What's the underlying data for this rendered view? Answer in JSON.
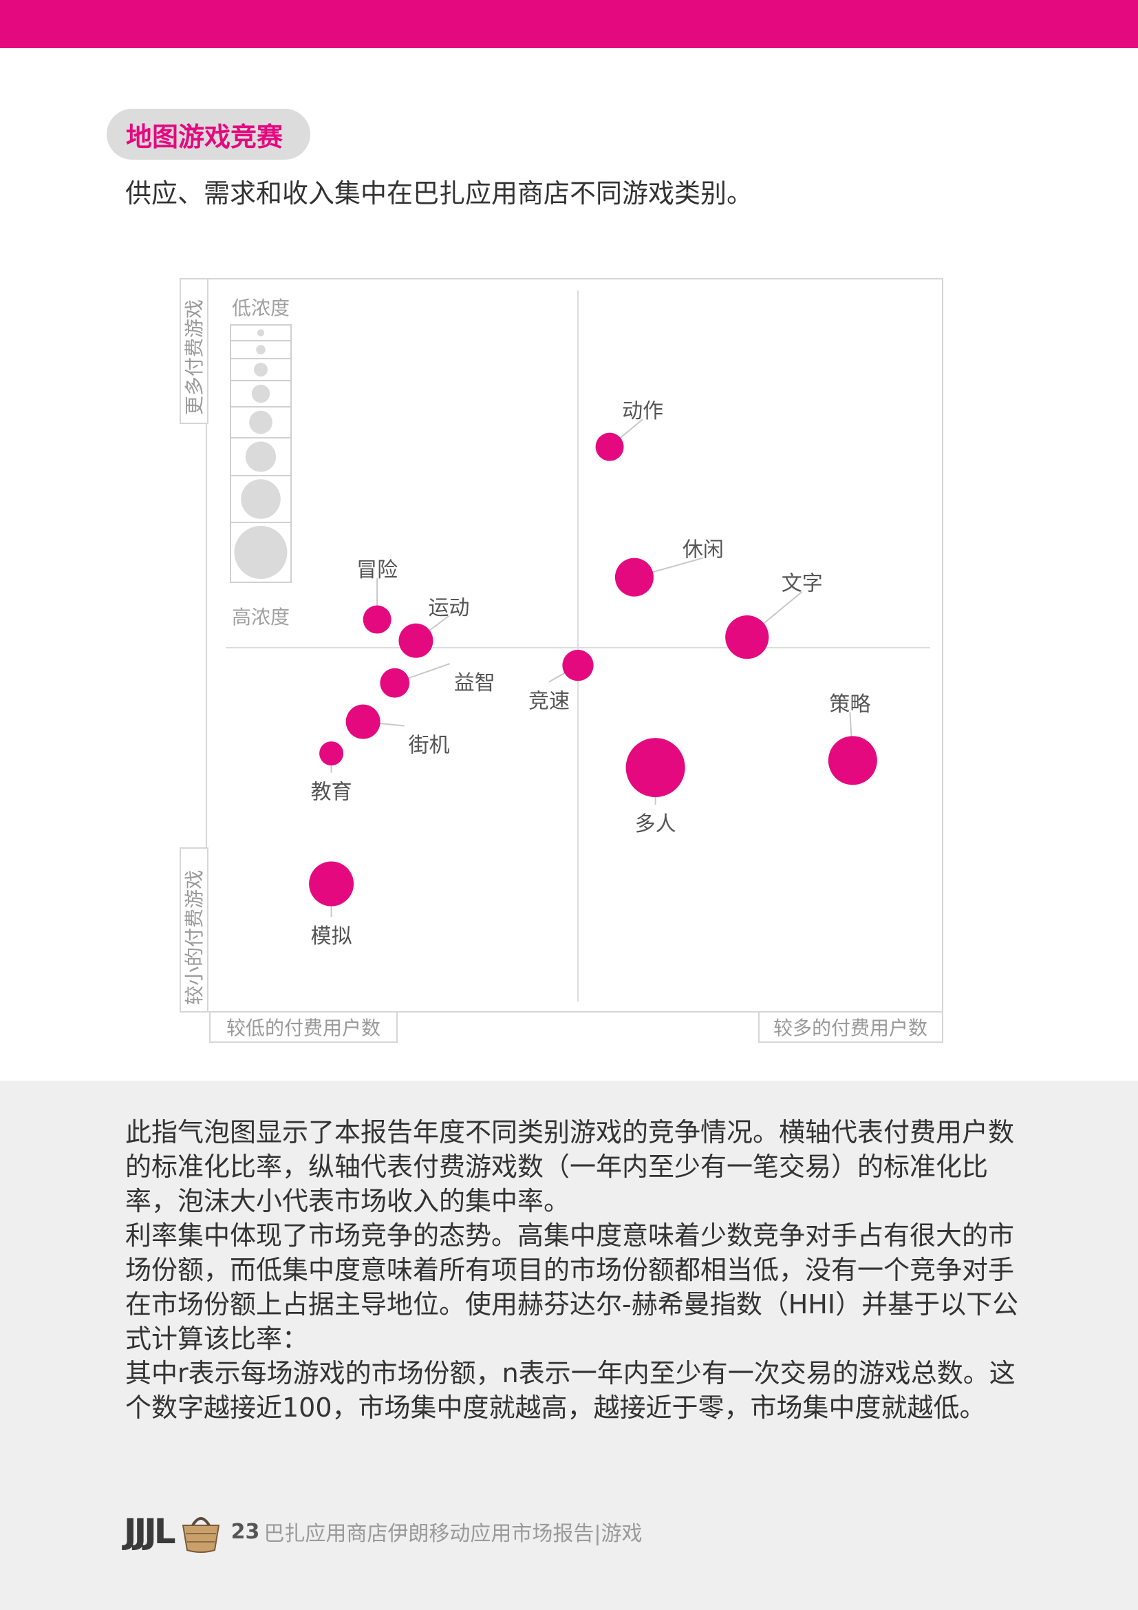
{
  "section": {
    "tag": "地图游戏竞赛",
    "subtitle": "供应、需求和收入集中在巴扎应用商店不同游戏类别。"
  },
  "chart_data": {
    "type": "scatter",
    "xlabel_left": "较低的付费用户数",
    "xlabel_right": "较多的付费用户数",
    "ylabel_top": "更多付费游戏",
    "ylabel_bottom": "较小的付费游戏",
    "size_legend": {
      "top_label": "低浓度",
      "bottom_label": "高浓度",
      "steps": 8
    },
    "color": "#e5097f",
    "points": [
      {
        "label": "动作",
        "x": 0.09,
        "y": 0.57,
        "size": 0.25
      },
      {
        "label": "休闲",
        "x": 0.16,
        "y": 0.2,
        "size": 0.5
      },
      {
        "label": "文字",
        "x": 0.48,
        "y": 0.03,
        "size": 0.62
      },
      {
        "label": "冒险",
        "x": -0.57,
        "y": 0.08,
        "size": 0.25
      },
      {
        "label": "运动",
        "x": -0.46,
        "y": 0.02,
        "size": 0.4
      },
      {
        "label": "竞速",
        "x": 0.0,
        "y": -0.05,
        "size": 0.32
      },
      {
        "label": "益智",
        "x": -0.52,
        "y": -0.1,
        "size": 0.28
      },
      {
        "label": "街机",
        "x": -0.61,
        "y": -0.21,
        "size": 0.4
      },
      {
        "label": "教育",
        "x": -0.7,
        "y": -0.3,
        "size": 0.15
      },
      {
        "label": "策略",
        "x": 0.78,
        "y": -0.32,
        "size": 0.75
      },
      {
        "label": "多人",
        "x": 0.22,
        "y": -0.34,
        "size": 1.0
      },
      {
        "label": "模拟",
        "x": -0.7,
        "y": -0.67,
        "size": 0.65
      }
    ]
  },
  "body": {
    "paragraphs": [
      "此指气泡图显示了本报告年度不同类别游戏的竞争情况。横轴代表付费用户数的标准化比率，纵轴代表付费游戏数（一年内至少有一笔交易）的标准化比率，泡沫大小代表市场收入的集中率。",
      "利率集中体现了市场竞争的态势。高集中度意味着少数竞争对手占有很大的市场份额，而低集中度意味着所有项目的市场份额都相当低，没有一个竞争对手在市场份额上占据主导地位。使用赫芬达尔-赫希曼指数（HHI）并基于以下公式计算该比率：",
      "其中r表示每场游戏的市场份额，n表示一年内至少有一次交易的游戏总数。这个数字越接近100，市场集中度就越高，越接近于零，市场集中度就越低。"
    ]
  },
  "footer": {
    "logo_text": "JJJL",
    "page_number": "23",
    "report_title": "巴扎应用商店伊朗移动应用市场报告",
    "section_name": "|游戏"
  }
}
